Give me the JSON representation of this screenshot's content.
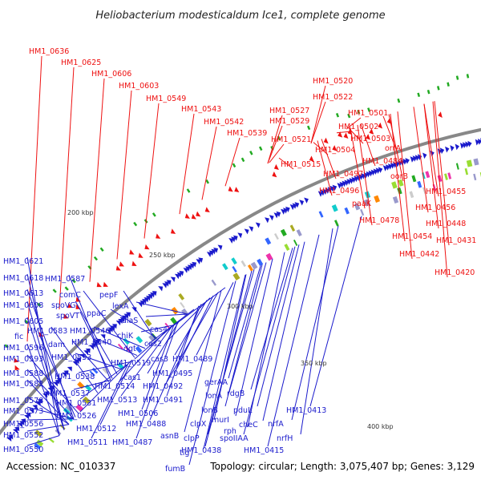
{
  "title": "Heliobacterium modesticaldum Ice1, complete genome",
  "footer": {
    "accession": "Accession: NC_010337",
    "summary": "Topology: circular; Length: 3,075,407 bp; Genes: 3,129"
  },
  "scale_labels": [
    "200 kbp",
    "250 kbp",
    "300 kbp",
    "350 kbp",
    "400 kbp"
  ],
  "red_labels": [
    "HM1_0636",
    "HM1_0625",
    "HM1_0606",
    "HM1_0603",
    "HM1_0549",
    "HM1_0543",
    "HM1_0542",
    "HM1_0539",
    "HM1_0520",
    "HM1_0522",
    "HM1_0527",
    "HM1_0529",
    "HM1_0521",
    "HM1_0515",
    "HM1_0501",
    "HM1_0502",
    "HM1_0503",
    "HM1_0504",
    "HM1_0497",
    "HM1_0496",
    "orrA",
    "HM1_0484",
    "oorB",
    "paaK",
    "HM1_0478",
    "HM1_0455",
    "HM1_0456",
    "HM1_0448",
    "HM1_0454",
    "HM1_0431",
    "HM1_0442",
    "HM1_0420"
  ],
  "blue_labels": [
    "HM1_0621",
    "HM1_0618",
    "HM1_0587",
    "HM1_0613",
    "comC",
    "pepF",
    "HM1_0608",
    "spoVG",
    "ppaC",
    "lexA",
    "spoVT",
    "HM1_0605",
    "alaS",
    "HM1_0583",
    "HM1_0546",
    "chiK",
    "fic",
    "HM1_0540",
    "dgt",
    "cas4",
    "HM1_0596",
    "dam",
    "cas2",
    "HM1_0553",
    "HM1_0593",
    "cas3",
    "HM1_0489",
    "HM1_0519",
    "HM1_0588",
    "HM1_0538",
    "cas1",
    "HM1_0495",
    "HM1_0582",
    "HM1_0514",
    "HM1_0492",
    "gerAA",
    "HM1_0537",
    "HM1_0578",
    "HM1_0531",
    "HM1_0513",
    "HM1_0491",
    "lonA",
    "rdgB",
    "HM1_0573",
    "HM1_0526",
    "HM1_0506",
    "lonB",
    "pduL",
    "HM1_0556",
    "HM1_0488",
    "clpX",
    "murI",
    "cheC",
    "nrfA",
    "HM1_0413",
    "HM1_0512",
    "rph",
    "HM1_0552",
    "clpP",
    "spoIIAA",
    "nrfH",
    "HM1_0511",
    "HM1_0487",
    "HM1_0438",
    "HM1_0415",
    "HM1_0550",
    "asnB",
    "tig",
    "fumB"
  ],
  "colors": {
    "forward": "#1a1acc",
    "reverse": "#ee1111",
    "ring": "#888888",
    "green": "#22aa22",
    "cyan": "#11cccc",
    "magenta": "#ee33aa",
    "olive": "#aaaa22",
    "lime": "#99dd33",
    "orange": "#ff8800"
  }
}
